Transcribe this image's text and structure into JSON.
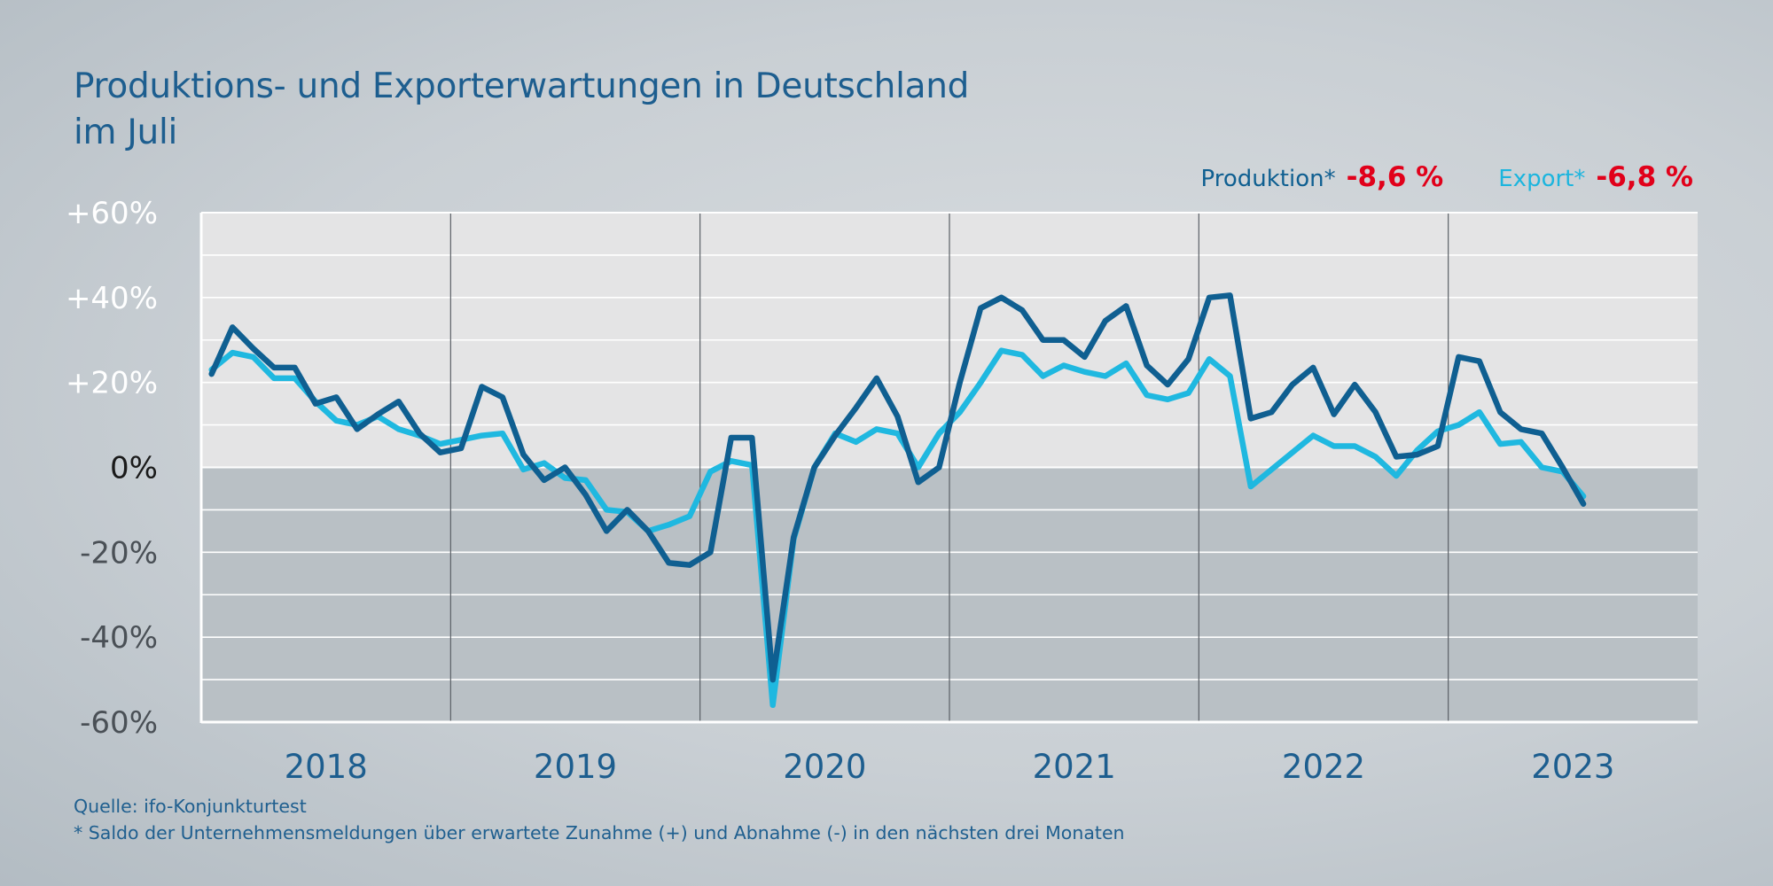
{
  "title": {
    "line1": "Produktions- und Exporterwartungen in Deutschland",
    "line2": "im Juli"
  },
  "legend": {
    "production_label": "Produktion*",
    "production_value": "-8,6 %",
    "export_label": "Export*",
    "export_value": "-6,8 %"
  },
  "footer": {
    "source": "Quelle: ifo-Konjunkturtest",
    "note": "* Saldo der Unternehmensmeldungen über erwartete Zunahme (+) und Abnahme (-) in den nächsten drei Monaten"
  },
  "colors": {
    "production": "#0f5f91",
    "export": "#1fb8e0",
    "highlight_value": "#e1001a",
    "positive_area": "#e4e4e5",
    "negative_area": "#b9c0c5"
  },
  "chart_data": {
    "type": "line",
    "ylim": [
      -60,
      60
    ],
    "yticks": [
      "+60%",
      "+40%",
      "+20%",
      "0%",
      "-20%",
      "-40%",
      "-60%"
    ],
    "ytick_values": [
      60,
      40,
      20,
      0,
      -20,
      -40,
      -60
    ],
    "x_categories": [
      "2018",
      "2019",
      "2020",
      "2021",
      "2022",
      "2023"
    ],
    "x_start": "2018-01",
    "x_end": "2023-12",
    "grid": true,
    "legend_position": "top-right",
    "series": [
      {
        "name": "Produktion*",
        "color": "#0f5f91",
        "x": [
          "2018-01",
          "2018-02",
          "2018-03",
          "2018-04",
          "2018-05",
          "2018-06",
          "2018-07",
          "2018-08",
          "2018-09",
          "2018-10",
          "2018-11",
          "2018-12",
          "2019-01",
          "2019-02",
          "2019-03",
          "2019-04",
          "2019-05",
          "2019-06",
          "2019-07",
          "2019-08",
          "2019-09",
          "2019-10",
          "2019-11",
          "2019-12",
          "2020-01",
          "2020-02",
          "2020-03",
          "2020-04",
          "2020-05",
          "2020-06",
          "2020-07",
          "2020-08",
          "2020-09",
          "2020-10",
          "2020-11",
          "2020-12",
          "2021-01",
          "2021-02",
          "2021-03",
          "2021-04",
          "2021-05",
          "2021-06",
          "2021-07",
          "2021-08",
          "2021-09",
          "2021-10",
          "2021-11",
          "2021-12",
          "2022-01",
          "2022-02",
          "2022-03",
          "2022-04",
          "2022-05",
          "2022-06",
          "2022-07",
          "2022-08",
          "2022-09",
          "2022-10",
          "2022-11",
          "2022-12",
          "2023-01",
          "2023-02",
          "2023-03",
          "2023-04",
          "2023-05",
          "2023-06",
          "2023-07"
        ],
        "values": [
          22,
          33,
          28,
          23.5,
          23.5,
          15,
          16.5,
          9,
          12.5,
          15.5,
          8,
          3.5,
          4.5,
          19,
          16.5,
          3,
          -3,
          0,
          -6.5,
          -15,
          -10,
          -15,
          -22.5,
          -23,
          -20,
          7,
          7,
          -50,
          -16.5,
          0,
          7.5,
          14,
          21,
          12,
          -3.5,
          0,
          20,
          37.5,
          40,
          37,
          30,
          30,
          26,
          34.5,
          38,
          24,
          19.5,
          25.5,
          40,
          40.5,
          11.5,
          13,
          19.5,
          23.5,
          12.5,
          19.5,
          13,
          2.5,
          3,
          5,
          26,
          25,
          13,
          9,
          8,
          0,
          -8.6
        ]
      },
      {
        "name": "Export*",
        "color": "#1fb8e0",
        "x": [
          "2018-01",
          "2018-02",
          "2018-03",
          "2018-04",
          "2018-05",
          "2018-06",
          "2018-07",
          "2018-08",
          "2018-09",
          "2018-10",
          "2018-11",
          "2018-12",
          "2019-01",
          "2019-02",
          "2019-03",
          "2019-04",
          "2019-05",
          "2019-06",
          "2019-07",
          "2019-08",
          "2019-09",
          "2019-10",
          "2019-11",
          "2019-12",
          "2020-01",
          "2020-02",
          "2020-03",
          "2020-04",
          "2020-05",
          "2020-06",
          "2020-07",
          "2020-08",
          "2020-09",
          "2020-10",
          "2020-11",
          "2020-12",
          "2021-01",
          "2021-02",
          "2021-03",
          "2021-04",
          "2021-05",
          "2021-06",
          "2021-07",
          "2021-08",
          "2021-09",
          "2021-10",
          "2021-11",
          "2021-12",
          "2022-01",
          "2022-02",
          "2022-03",
          "2022-04",
          "2022-05",
          "2022-06",
          "2022-07",
          "2022-08",
          "2022-09",
          "2022-10",
          "2022-11",
          "2022-12",
          "2023-01",
          "2023-02",
          "2023-03",
          "2023-04",
          "2023-05",
          "2023-06",
          "2023-07"
        ],
        "values": [
          23,
          27,
          26,
          21,
          21,
          15.5,
          11,
          10,
          12,
          9,
          7.5,
          5.5,
          6.5,
          7.5,
          8,
          -0.5,
          1,
          -2.5,
          -3,
          -10,
          -10.5,
          -15,
          -13.5,
          -11.5,
          -1,
          1.5,
          0.5,
          -56,
          -17,
          0,
          8,
          6,
          9,
          8,
          0,
          8,
          13,
          20,
          27.5,
          26.5,
          21.5,
          24,
          22.5,
          21.5,
          24.5,
          17,
          16,
          17.5,
          25.5,
          21.5,
          -4.5,
          -0.5,
          3.5,
          7.5,
          5,
          5,
          2.5,
          -2,
          4,
          8.5,
          10,
          13,
          5.5,
          6,
          0,
          -1,
          -6.8
        ]
      }
    ]
  }
}
